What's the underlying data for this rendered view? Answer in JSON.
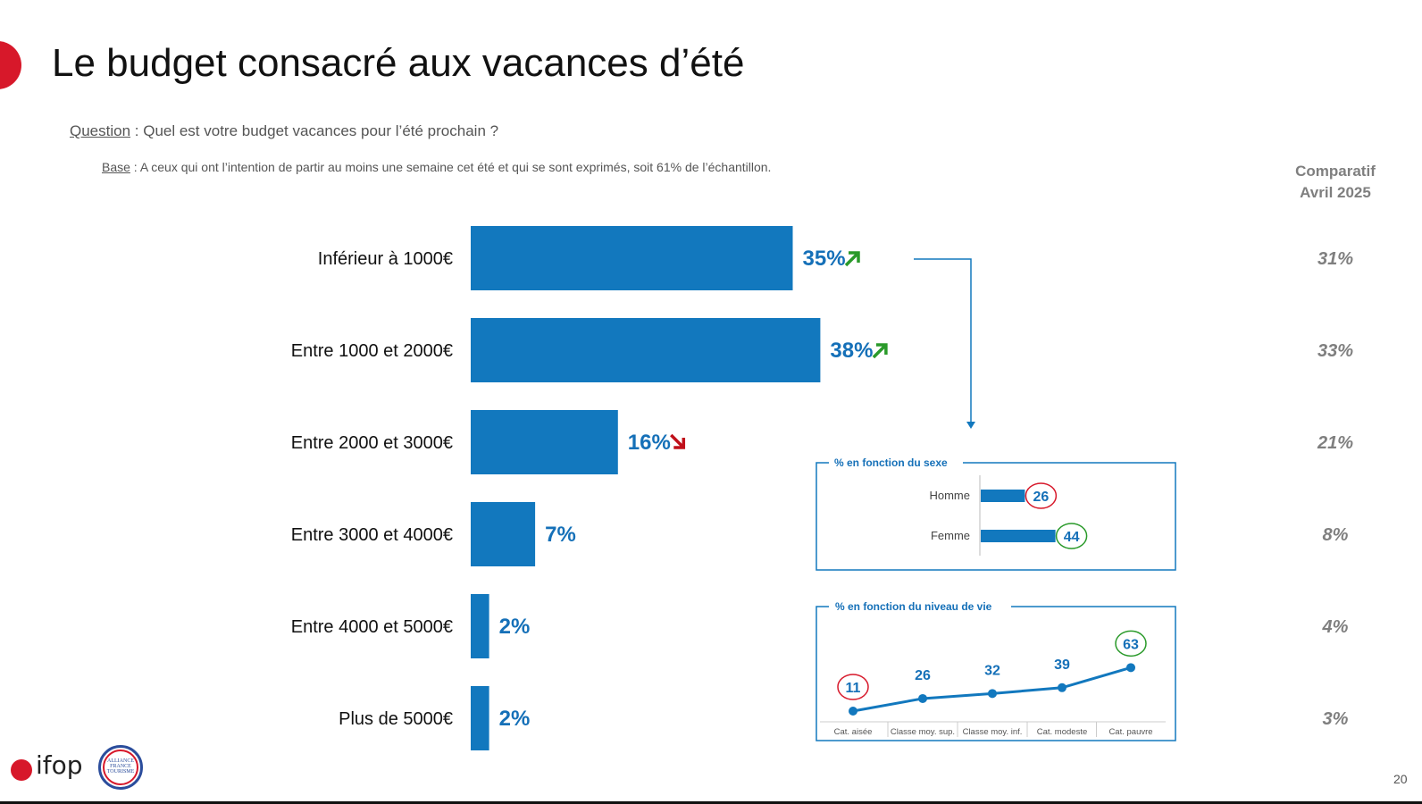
{
  "header": {
    "title": "Le budget consacré aux vacances d’été",
    "question_label": "Question",
    "question_text": " : Quel est votre budget vacances pour l’été prochain ?",
    "base_label": "Base",
    "base_text": " : A ceux qui ont l’intention de partir au moins une semaine cet été et qui se sont exprimés, soit 61% de l’échantillon."
  },
  "comparatif": {
    "line1": "Comparatif",
    "line2": "Avril 2025"
  },
  "colors": {
    "bar": "#1278be",
    "value_text": "#1570b8",
    "up": "#2a9a2a",
    "down": "#c0101a",
    "comparatif_text": "#7f7f7f",
    "circle_low": "#d7182a",
    "circle_high": "#2a9a2a",
    "brand_red": "#d7182a"
  },
  "chart_data": [
    {
      "type": "bar",
      "orientation": "horizontal",
      "categories": [
        "Inférieur à 1000€",
        "Entre 1000 et 2000€",
        "Entre 2000 et 3000€",
        "Entre 3000 et 4000€",
        "Entre 4000 et 5000€",
        "Plus de 5000€"
      ],
      "values": [
        35,
        38,
        16,
        7,
        2,
        2
      ],
      "value_labels": [
        "35%",
        "38%",
        "16%",
        "7%",
        "2%",
        "2%"
      ],
      "trend_icons": [
        "arrow-up-right-icon",
        "arrow-up-right-icon",
        "arrow-down-right-icon",
        "",
        "",
        ""
      ],
      "comparison_values": [
        31,
        33,
        21,
        8,
        4,
        3
      ],
      "comparison_labels": [
        "31%",
        "33%",
        "21%",
        "8%",
        "4%",
        "3%"
      ]
    },
    {
      "type": "bar",
      "orientation": "horizontal",
      "title": "% en fonction du sexe",
      "categories": [
        "Homme",
        "Femme"
      ],
      "values": [
        26,
        44
      ],
      "value_labels": [
        "26",
        "44"
      ]
    },
    {
      "type": "line",
      "title": "% en fonction du niveau de vie",
      "categories": [
        "Cat. aisée",
        "Classe moy. sup.",
        "Classe moy. inf.",
        "Cat. modeste",
        "Cat. pauvre"
      ],
      "values": [
        11,
        26,
        32,
        39,
        63
      ],
      "value_labels": [
        "11",
        "26",
        "32",
        "39",
        "63"
      ]
    }
  ],
  "footer": {
    "page_number": "20",
    "logo_ifop": "ifop",
    "logo_alliance": "ALLIANCE FRANCE TOURISME"
  }
}
